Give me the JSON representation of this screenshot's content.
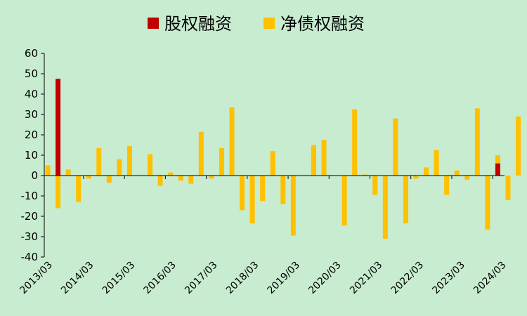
{
  "chart_data": {
    "type": "bar",
    "stacked": true,
    "legend_position": "top-center",
    "grid": false,
    "ylim": [
      -40,
      60
    ],
    "yticks": [
      -40,
      -30,
      -20,
      -10,
      0,
      10,
      20,
      30,
      40,
      50,
      60
    ],
    "x_tick_labels": [
      "2013/03",
      "2014/03",
      "2015/03",
      "2016/03",
      "2017/03",
      "2018/03",
      "2019/03",
      "2020/03",
      "2021/03",
      "2022/03",
      "2023/03",
      "2024/03"
    ],
    "periods_per_label": 4,
    "series": [
      {
        "name": "股权融资",
        "color": "#c00000",
        "values": [
          0,
          47.5,
          0,
          0,
          0,
          0,
          0,
          0,
          0,
          0,
          0,
          0,
          0,
          0,
          0,
          0,
          0,
          0,
          0,
          0,
          0,
          0,
          0,
          0,
          0,
          0,
          0,
          0,
          0,
          0,
          0,
          0,
          0,
          0,
          0,
          0,
          0,
          0,
          0,
          0,
          0,
          0,
          0,
          0,
          6,
          0,
          0,
          0,
          0
        ]
      },
      {
        "name": "净债权融资",
        "color": "#ffc000",
        "values": [
          5,
          -16,
          3,
          -13,
          -1.5,
          13.5,
          -3.5,
          8,
          14.5,
          0,
          10.5,
          -5,
          1.5,
          -2.5,
          -4,
          21.5,
          -1.5,
          13.5,
          33.5,
          -17,
          -23.5,
          -12.5,
          12,
          -14,
          -29.5,
          0,
          15,
          17.5,
          0,
          -24.5,
          32.5,
          0.5,
          -9.5,
          -31,
          28,
          -23.5,
          -1.5,
          4,
          12.5,
          -9.5,
          2.5,
          -2,
          33,
          -26.5,
          4,
          -12,
          29,
          0,
          0
        ]
      }
    ]
  }
}
